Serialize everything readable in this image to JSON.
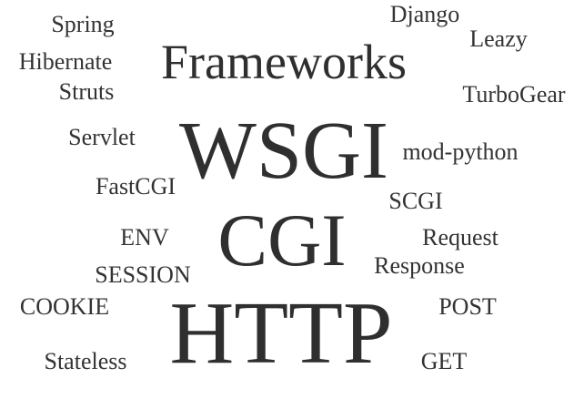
{
  "word_cloud": {
    "words": [
      {
        "id": "spring",
        "text": "Spring"
      },
      {
        "id": "hibernate",
        "text": "Hibernate"
      },
      {
        "id": "struts",
        "text": "Struts"
      },
      {
        "id": "frameworks",
        "text": "Frameworks"
      },
      {
        "id": "django",
        "text": "Django"
      },
      {
        "id": "leazy",
        "text": "Leazy"
      },
      {
        "id": "turbogear",
        "text": "TurboGear"
      },
      {
        "id": "servlet",
        "text": "Servlet"
      },
      {
        "id": "wsgi",
        "text": "WSGI"
      },
      {
        "id": "mod_python",
        "text": "mod-python"
      },
      {
        "id": "fastcgi",
        "text": "FastCGI"
      },
      {
        "id": "scgi",
        "text": "SCGI"
      },
      {
        "id": "env",
        "text": "ENV"
      },
      {
        "id": "cgi",
        "text": "CGI"
      },
      {
        "id": "request",
        "text": "Request"
      },
      {
        "id": "session",
        "text": "SESSION"
      },
      {
        "id": "response",
        "text": "Response"
      },
      {
        "id": "cookie",
        "text": "COOKIE"
      },
      {
        "id": "http",
        "text": "HTTP"
      },
      {
        "id": "post",
        "text": "POST"
      },
      {
        "id": "stateless",
        "text": "Stateless"
      },
      {
        "id": "get",
        "text": "GET"
      }
    ]
  }
}
